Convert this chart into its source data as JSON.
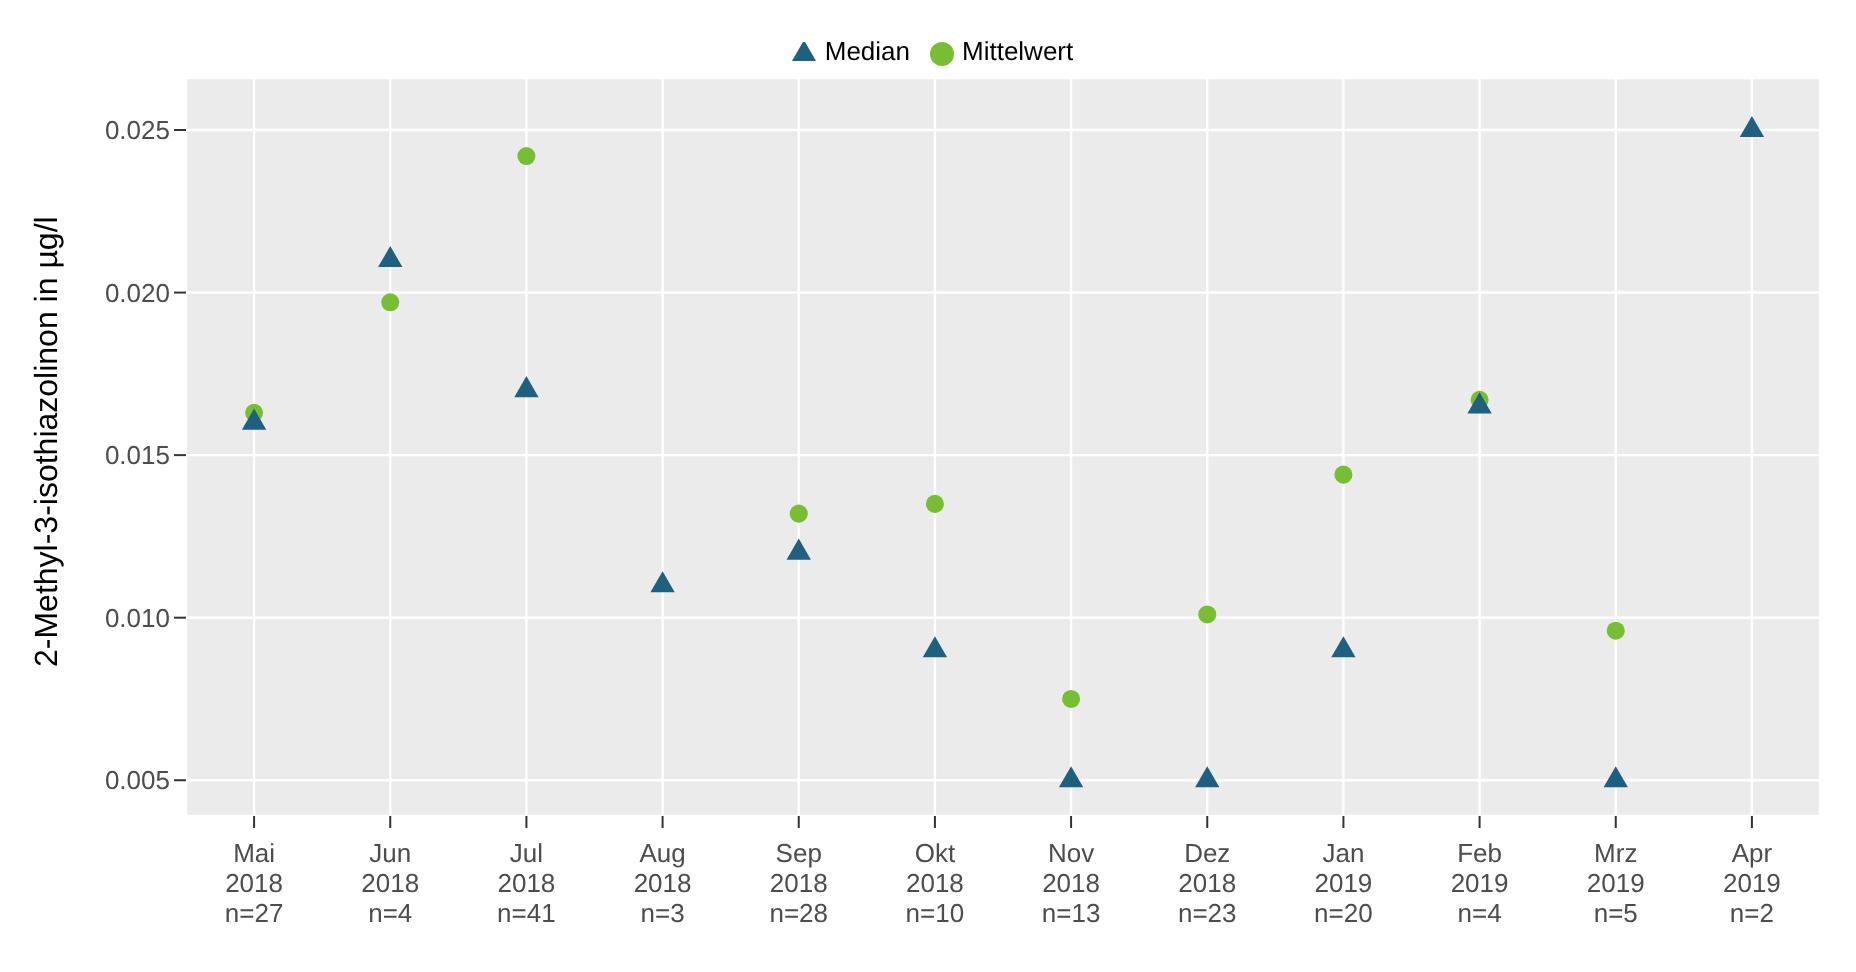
{
  "chart_data": {
    "type": "scatter",
    "ylabel": "2-Methyl-3-isothiazolinon in µg/l",
    "categories": [
      "Mai\n2018\nn=27",
      "Jun\n2018\nn=4",
      "Jul\n2018\nn=41",
      "Aug\n2018\nn=3",
      "Sep\n2018\nn=28",
      "Okt\n2018\nn=10",
      "Nov\n2018\nn=13",
      "Dez\n2018\nn=23",
      "Jan\n2019\nn=20",
      "Feb\n2019\nn=4",
      "Mrz\n2019\nn=5",
      "Apr\n2019\nn=2"
    ],
    "series": [
      {
        "name": "Mittelwert",
        "color": "#78be33",
        "marker": "circle",
        "values": [
          0.0163,
          0.0197,
          0.0242,
          null,
          0.0132,
          0.0135,
          0.0075,
          0.0101,
          0.0144,
          0.0167,
          0.0096,
          null
        ]
      },
      {
        "name": "Median",
        "color": "#1f5f7f",
        "marker": "triangle",
        "values": [
          0.016,
          0.021,
          0.017,
          0.011,
          0.012,
          0.009,
          0.005,
          0.005,
          0.009,
          0.0165,
          0.005,
          0.025
        ]
      }
    ],
    "ylim": [
      0.0039,
      0.0266
    ],
    "yticks": [
      {
        "value": 0.005,
        "label": "0.005"
      },
      {
        "value": 0.01,
        "label": "0.010"
      },
      {
        "value": 0.015,
        "label": "0.015"
      },
      {
        "value": 0.02,
        "label": "0.020"
      },
      {
        "value": 0.025,
        "label": "0.025"
      }
    ],
    "grid": true,
    "legend": "top"
  }
}
